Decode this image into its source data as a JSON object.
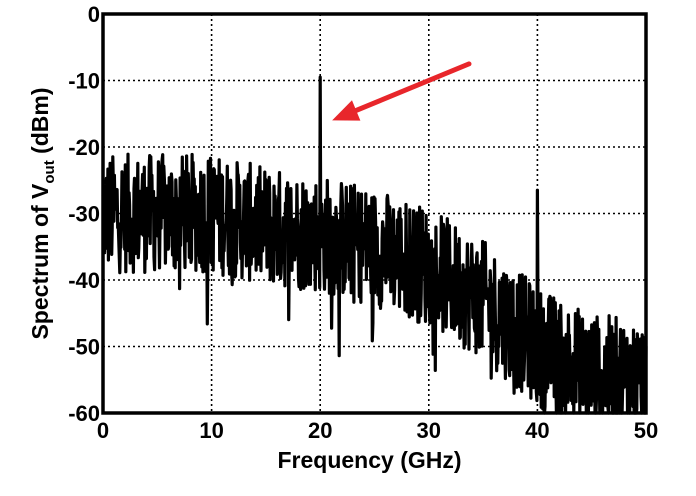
{
  "chart_data": {
    "type": "line",
    "xlabel": "Frequency (GHz)",
    "ylabel": "Spectrum of V",
    "ylabel_subscript": "out",
    "ylabel_unit": " (dBm)",
    "xlim": [
      0,
      50
    ],
    "ylim": [
      -60,
      0
    ],
    "xticks": [
      0,
      10,
      20,
      30,
      40,
      50
    ],
    "yticks": [
      0,
      -10,
      -20,
      -30,
      -40,
      -50,
      -60
    ],
    "xtick_labels": [
      "0",
      "10",
      "20",
      "30",
      "40",
      "50"
    ],
    "ytick_labels": [
      "0",
      "-10",
      "-20",
      "-30",
      "-40",
      "-50",
      "-60"
    ],
    "grid": true,
    "grid_style": "dotted",
    "line_color": "#000000",
    "annotation_arrow_color": "#e8262b",
    "annotation": {
      "type": "arrow",
      "tail": [
        33.7,
        -7.5
      ],
      "head": [
        21.1,
        -16.0
      ]
    },
    "series": [
      {
        "values_description_ok": true,
        "noise_floor_envelope": [
          {
            "x": 0,
            "y": -30
          },
          {
            "x": 5,
            "y": -30
          },
          {
            "x": 10,
            "y": -30
          },
          {
            "x": 15,
            "y": -32
          },
          {
            "x": 20,
            "y": -33
          },
          {
            "x": 25,
            "y": -35
          },
          {
            "x": 30,
            "y": -38
          },
          {
            "x": 35,
            "y": -43
          },
          {
            "x": 40,
            "y": -50
          },
          {
            "x": 45,
            "y": -54
          },
          {
            "x": 50,
            "y": -55
          }
        ],
        "noise_spread_dB": 9,
        "spurs": [
          {
            "x": 20.0,
            "y": -9.5
          },
          {
            "x": 40.0,
            "y": -26.5
          }
        ]
      }
    ]
  }
}
